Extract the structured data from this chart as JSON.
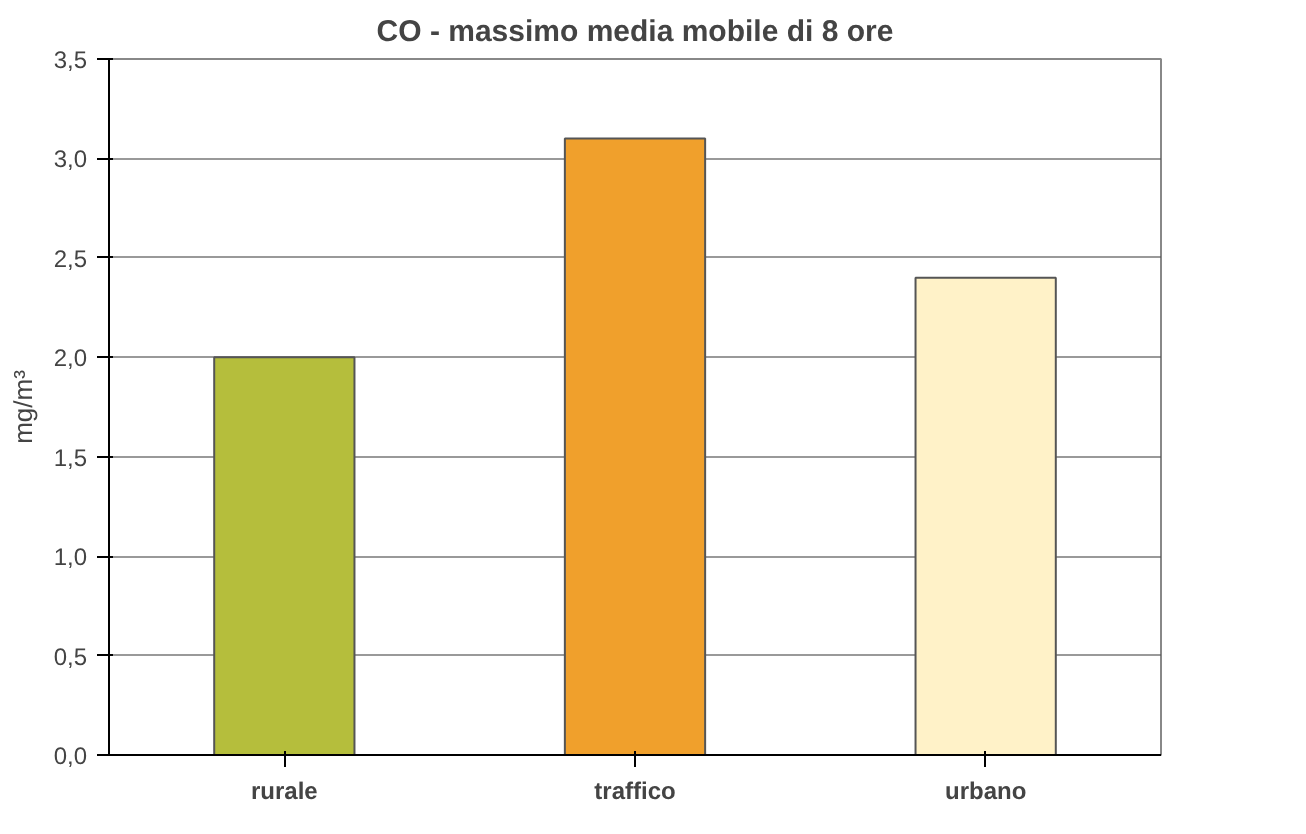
{
  "chart_data": {
    "type": "bar",
    "title": "CO - massimo media mobile di 8 ore",
    "ylabel": "mg/m³",
    "categories": [
      "rurale",
      "traffico",
      "urbano"
    ],
    "values": [
      2.0,
      3.1,
      2.4
    ],
    "colors": [
      "#b5be3c",
      "#f0a02c",
      "#fff2c8"
    ],
    "ylim": [
      0,
      3.5
    ],
    "yticks": [
      {
        "value": 0,
        "label": "0,0"
      },
      {
        "value": 0.5,
        "label": "0,5"
      },
      {
        "value": 1,
        "label": "1,0"
      },
      {
        "value": 1.5,
        "label": "1,5"
      },
      {
        "value": 2,
        "label": "2,0"
      },
      {
        "value": 2.5,
        "label": "2,5"
      },
      {
        "value": 3,
        "label": "3,0"
      },
      {
        "value": 3.5,
        "label": "3,5"
      }
    ],
    "grid": "y"
  }
}
